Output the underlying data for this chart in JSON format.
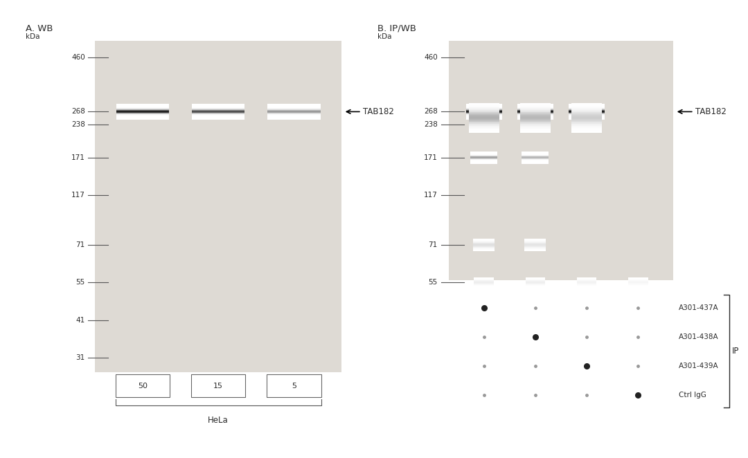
{
  "bg_color": "#e8e5e0",
  "white": "#ffffff",
  "panel_A_title": "A. WB",
  "panel_B_title": "B. IP/WB",
  "kda_label": "kDa",
  "markers_A": [
    460,
    268,
    238,
    171,
    117,
    71,
    55,
    41,
    31
  ],
  "markers_B": [
    460,
    268,
    238,
    171,
    117,
    71,
    55
  ],
  "wb_lane_labels": [
    "50",
    "15",
    "5"
  ],
  "wb_cell_label": "HeLa",
  "ip_row_labels": [
    "A301-437A",
    "A301-438A",
    "A301-439A",
    "Ctrl IgG"
  ],
  "ip_label": "IP",
  "panel_A_marker_y": {
    "460": 0.895,
    "268": 0.765,
    "238": 0.735,
    "171": 0.655,
    "117": 0.565,
    "71": 0.445,
    "55": 0.355,
    "41": 0.265,
    "31": 0.175
  },
  "panel_B_marker_y": {
    "460": 0.895,
    "268": 0.765,
    "238": 0.735,
    "171": 0.655,
    "117": 0.565,
    "71": 0.445,
    "55": 0.355
  },
  "gel_bg": "#dedad4",
  "band_color": "#1a1a1a",
  "text_color": "#2a2a2a",
  "tick_color": "#555555"
}
